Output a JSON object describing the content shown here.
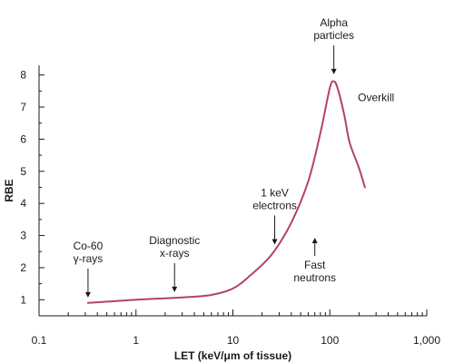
{
  "chart_data": {
    "type": "line",
    "xlabel": "LET (keV/μm of tissue)",
    "ylabel": "RBE",
    "x_scale": "log",
    "xlim": [
      0.1,
      1000
    ],
    "ylim": [
      0.5,
      8.3
    ],
    "grid": false,
    "x_ticks": [
      {
        "value": 0.1,
        "label": "0.1"
      },
      {
        "value": 1,
        "label": "1"
      },
      {
        "value": 10,
        "label": "10"
      },
      {
        "value": 100,
        "label": "100"
      },
      {
        "value": 1000,
        "label": "1,000"
      }
    ],
    "y_ticks": [
      1,
      2,
      3,
      4,
      5,
      6,
      7,
      8
    ],
    "series": [
      {
        "color": "#b5416a",
        "x": [
          0.32,
          1,
          3,
          6,
          10,
          15,
          25,
          40,
          60,
          80,
          100,
          110,
          120,
          140,
          160,
          200,
          230
        ],
        "y": [
          0.9,
          1.0,
          1.07,
          1.15,
          1.35,
          1.75,
          2.4,
          3.4,
          4.7,
          6.2,
          7.6,
          7.8,
          7.6,
          6.8,
          5.9,
          5.1,
          4.5
        ]
      }
    ],
    "annotations": [
      {
        "lines": [
          "Co-60",
          "γ-rays"
        ],
        "x": 0.32,
        "y": 0.9,
        "arrow": "down"
      },
      {
        "lines": [
          "Diagnostic",
          "x-rays"
        ],
        "x": 2.5,
        "y": 1.07,
        "arrow": "down"
      },
      {
        "lines": [
          "1 keV",
          "electrons"
        ],
        "x": 27,
        "y": 2.55,
        "arrow": "down"
      },
      {
        "lines": [
          "Fast",
          "neutrons"
        ],
        "x": 70,
        "y": 3.1,
        "arrow": "up"
      },
      {
        "lines": [
          "Alpha",
          "particles"
        ],
        "x": 110,
        "y": 7.85,
        "arrow": "down"
      },
      {
        "lines": [
          "Overkill"
        ],
        "x": 175,
        "y": 7.3,
        "arrow": "none"
      }
    ]
  }
}
